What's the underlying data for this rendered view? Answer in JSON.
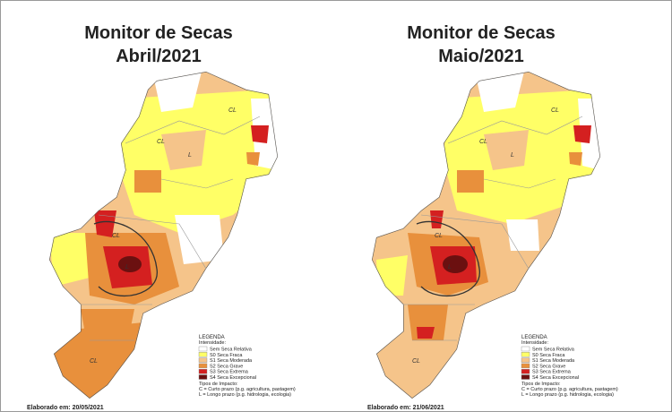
{
  "panels": [
    {
      "title_line1": "Monitor de Secas",
      "title_line2": "Abril/2021",
      "map_labels": [
        "CL",
        "CL",
        "L",
        "CL",
        "L",
        "CL"
      ],
      "legend": {
        "title": "LEGENDA",
        "intensity_label": "Intensidade:",
        "items": [
          {
            "label": "Sem Seca Relativa",
            "color": "#ffffff"
          },
          {
            "label": "S0 Seca Fraca",
            "color": "#ffff66"
          },
          {
            "label": "S1 Seca Moderada",
            "color": "#f5c48a"
          },
          {
            "label": "S2 Seca Grave",
            "color": "#e8903c"
          },
          {
            "label": "S3 Seca Extrema",
            "color": "#d42020"
          },
          {
            "label": "S4 Seca Excepcional",
            "color": "#6b1010"
          }
        ],
        "impact_label": "Tipos de Impacto:",
        "impacts": [
          "C = Curto prazo (p.g. agricultura, pastagem)",
          "L = Longo prazo (p.g. hidrologia, ecologia)"
        ]
      },
      "footer": "Elaborado em: 20/05/2021"
    },
    {
      "title_line1": "Monitor de Secas",
      "title_line2": "Maio/2021",
      "map_labels": [
        "CL",
        "CL",
        "L",
        "CL",
        "L",
        "CL"
      ],
      "legend": {
        "title": "LEGENDA",
        "intensity_label": "Intensidade:",
        "items": [
          {
            "label": "Sem Seca Relativa",
            "color": "#ffffff"
          },
          {
            "label": "S0 Seca Fraca",
            "color": "#ffff66"
          },
          {
            "label": "S1 Seca Moderada",
            "color": "#f5c48a"
          },
          {
            "label": "S2 Seca Grave",
            "color": "#e8903c"
          },
          {
            "label": "S3 Seca Extrema",
            "color": "#d42020"
          },
          {
            "label": "S4 Seca Excepcional",
            "color": "#6b1010"
          }
        ],
        "impact_label": "Tipos de Impacto:",
        "impacts": [
          "C = Curto prazo (p.g. agricultura, pastagem)",
          "L = Longo prazo (p.g. hidrologia, ecologia)"
        ]
      },
      "footer": "Elaborado em: 21/06/2021"
    }
  ]
}
